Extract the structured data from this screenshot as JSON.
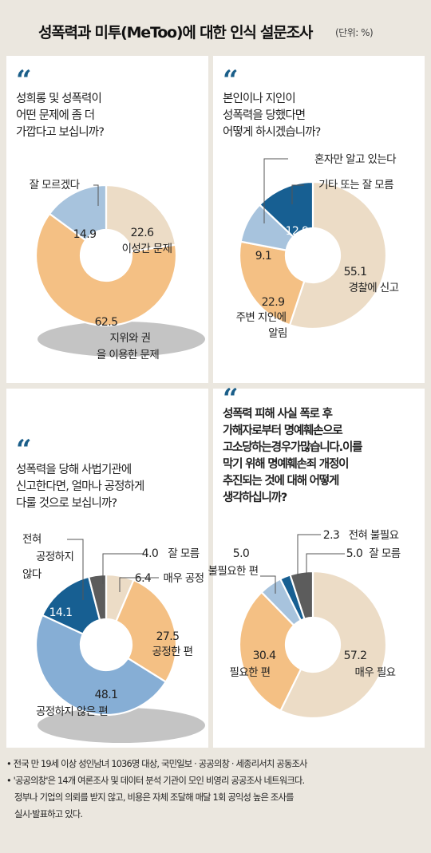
{
  "header": {
    "title": "성폭력과 미투(MeToo)에 대한 인식 설문조사",
    "unit": "(단위: %)"
  },
  "quote_mark": "“",
  "chart_data": [
    {
      "type": "pie",
      "question": "성희롱 및 성폭력이\n어떤 문제에 좀 더\n가깝다고 보십니까?",
      "slices": [
        {
          "label": "이성간 문제",
          "value": 22.6,
          "color": "#ecdcc6"
        },
        {
          "label": "지위와 권력을 이용한 문제",
          "value": 62.5,
          "color": "#f4c084"
        },
        {
          "label": "잘 모르겠다",
          "value": 14.9,
          "color": "#a7c3dd"
        }
      ]
    },
    {
      "type": "pie",
      "question": "본인이나 지인이\n성폭력을 당했다면\n어떻게 하시겠습니까?",
      "slices": [
        {
          "label": "경찰에 신고",
          "value": 55.1,
          "color": "#ecdcc6"
        },
        {
          "label": "주변 지인에 알림",
          "value": 22.9,
          "color": "#f4c084"
        },
        {
          "label": "혼자만 알고 있는다",
          "value": 9.1,
          "color": "#a7c3dd"
        },
        {
          "label": "기타 또는 잘 모름",
          "value": 12.9,
          "color": "#175f92"
        }
      ]
    },
    {
      "type": "pie",
      "question": "성폭력을 당해 사법기관에\n신고한다면, 얼마나 공정하게\n다룰 것으로 보십니까?",
      "slices": [
        {
          "label": "매우 공정",
          "value": 6.4,
          "color": "#ecdcc6"
        },
        {
          "label": "공정한 편",
          "value": 27.5,
          "color": "#f4c084"
        },
        {
          "label": "공정하지 않은 편",
          "value": 48.1,
          "color": "#86aed5"
        },
        {
          "label": "전혀 공정하지 않다",
          "value": 14.1,
          "color": "#175f92"
        },
        {
          "label": "잘 모름",
          "value": 4.0,
          "color": "#5c5c5c"
        }
      ]
    },
    {
      "type": "pie",
      "question": "성폭력 피해 사실 폭로 후\n가해자로부터 명예훼손으로\n고소당하는경우가많습니다.이를\n막기 위해 명예훼손죄 개정이\n추진되는 것에 대해 어떻게\n생각하십니까?",
      "slices": [
        {
          "label": "매우 필요",
          "value": 57.2,
          "color": "#ecdcc6"
        },
        {
          "label": "필요한 편",
          "value": 30.4,
          "color": "#f4c084"
        },
        {
          "label": "불필요한 편",
          "value": 5.0,
          "color": "#a7c3dd"
        },
        {
          "label": "전혀 불필요",
          "value": 2.3,
          "color": "#175f92"
        },
        {
          "label": "잘 모름",
          "value": 5.0,
          "color": "#5c5c5c"
        }
      ]
    }
  ],
  "notes": [
    "• 전국 만 19세 이상 성인남녀 1036명 대상, 국민일보 · 공공의창 · 세종리서치 공동조사",
    "• '공공의창'은 14개 여론조사 및 데이터 분석 기관이 모인 비영리 공공조사 네트워크다.",
    "정부나 기업의 의뢰를 받지 않고, 비용은 자체 조달해 매달 1회 공익성 높은 조사를",
    "실시·발표하고 있다."
  ]
}
